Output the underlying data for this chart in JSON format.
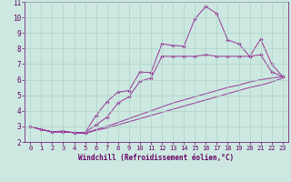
{
  "xlabel": "Windchill (Refroidissement éolien,°C)",
  "background_color": "#cce8e0",
  "grid_color": "#aad4c8",
  "line_color": "#993399",
  "text_color": "#660066",
  "xlim": [
    -0.5,
    23.5
  ],
  "ylim": [
    2,
    11
  ],
  "xticks": [
    0,
    1,
    2,
    3,
    4,
    5,
    6,
    7,
    8,
    9,
    10,
    11,
    12,
    13,
    14,
    15,
    16,
    17,
    18,
    19,
    20,
    21,
    22,
    23
  ],
  "yticks": [
    2,
    3,
    4,
    5,
    6,
    7,
    8,
    9,
    10,
    11
  ],
  "series": [
    {
      "x": [
        0,
        1,
        2,
        3,
        4,
        5,
        6,
        7,
        8,
        9,
        10,
        11,
        12,
        13,
        14,
        15,
        16,
        17,
        18,
        19,
        20,
        21,
        22,
        23
      ],
      "y": [
        3.0,
        2.8,
        2.65,
        2.65,
        2.6,
        2.6,
        3.7,
        4.6,
        5.2,
        5.3,
        6.5,
        6.45,
        8.3,
        8.2,
        8.15,
        9.9,
        10.7,
        10.25,
        8.55,
        8.3,
        7.5,
        8.6,
        7.0,
        6.2
      ],
      "markers": true
    },
    {
      "x": [
        0,
        1,
        2,
        3,
        4,
        5,
        6,
        7,
        8,
        9,
        10,
        11,
        12,
        13,
        14,
        15,
        16,
        17,
        18,
        19,
        20,
        21,
        22,
        23
      ],
      "y": [
        3.0,
        2.8,
        2.65,
        2.7,
        2.6,
        2.6,
        3.1,
        3.6,
        4.5,
        4.9,
        5.9,
        6.1,
        7.5,
        7.5,
        7.5,
        7.5,
        7.6,
        7.5,
        7.5,
        7.5,
        7.5,
        7.6,
        6.5,
        6.2
      ],
      "markers": true
    },
    {
      "x": [
        0,
        1,
        2,
        3,
        4,
        5,
        6,
        7,
        8,
        9,
        10,
        11,
        12,
        13,
        14,
        15,
        16,
        17,
        18,
        19,
        20,
        21,
        22,
        23
      ],
      "y": [
        3.0,
        2.8,
        2.65,
        2.65,
        2.6,
        2.55,
        2.8,
        3.0,
        3.25,
        3.5,
        3.75,
        4.0,
        4.25,
        4.5,
        4.7,
        4.9,
        5.1,
        5.3,
        5.5,
        5.65,
        5.85,
        6.0,
        6.1,
        6.2
      ],
      "markers": false
    },
    {
      "x": [
        0,
        1,
        2,
        3,
        4,
        5,
        6,
        7,
        8,
        9,
        10,
        11,
        12,
        13,
        14,
        15,
        16,
        17,
        18,
        19,
        20,
        21,
        22,
        23
      ],
      "y": [
        3.0,
        2.8,
        2.65,
        2.65,
        2.6,
        2.55,
        2.75,
        2.9,
        3.1,
        3.3,
        3.5,
        3.7,
        3.9,
        4.1,
        4.3,
        4.5,
        4.7,
        4.9,
        5.1,
        5.3,
        5.5,
        5.65,
        5.85,
        6.1
      ],
      "markers": false
    }
  ]
}
